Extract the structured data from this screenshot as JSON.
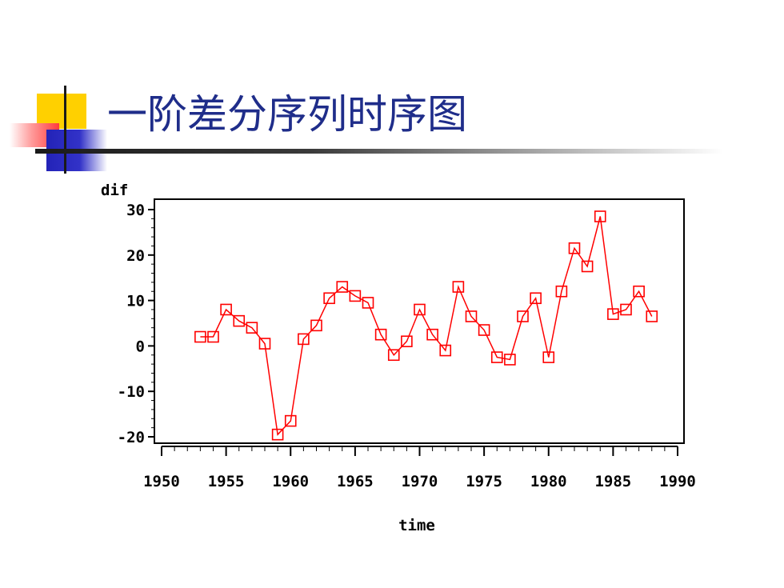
{
  "slide": {
    "title": "一阶差分序列时序图"
  },
  "chart_data": {
    "type": "line",
    "title": "",
    "xlabel": "time",
    "ylabel": "dif",
    "xlim": [
      1950,
      1990
    ],
    "ylim": [
      -20,
      30
    ],
    "x_ticks": [
      1950,
      1955,
      1960,
      1965,
      1970,
      1975,
      1980,
      1985,
      1990
    ],
    "y_ticks": [
      30,
      20,
      10,
      0,
      -10,
      -20
    ],
    "marker": "square",
    "color": "#ff0000",
    "grid": false,
    "series": [
      {
        "x": [
          1953,
          1954,
          1955,
          1956,
          1957,
          1958,
          1959,
          1960,
          1961,
          1962,
          1963,
          1964,
          1965,
          1966,
          1967,
          1968,
          1969,
          1970,
          1971,
          1972,
          1973,
          1974,
          1975,
          1976,
          1977,
          1978,
          1979,
          1980,
          1981,
          1982,
          1983,
          1984,
          1985,
          1986,
          1987,
          1988
        ],
        "y": [
          2,
          2,
          8,
          5.5,
          4,
          0.5,
          -19.5,
          -16.5,
          1.5,
          4.5,
          10.5,
          13,
          11,
          9.5,
          2.5,
          -2,
          1,
          8,
          2.5,
          -1,
          13,
          6.5,
          3.5,
          -2.5,
          -3,
          6.5,
          10.5,
          -2.5,
          12,
          21.5,
          17.5,
          28.5,
          7,
          8,
          12,
          6.5
        ]
      }
    ]
  }
}
